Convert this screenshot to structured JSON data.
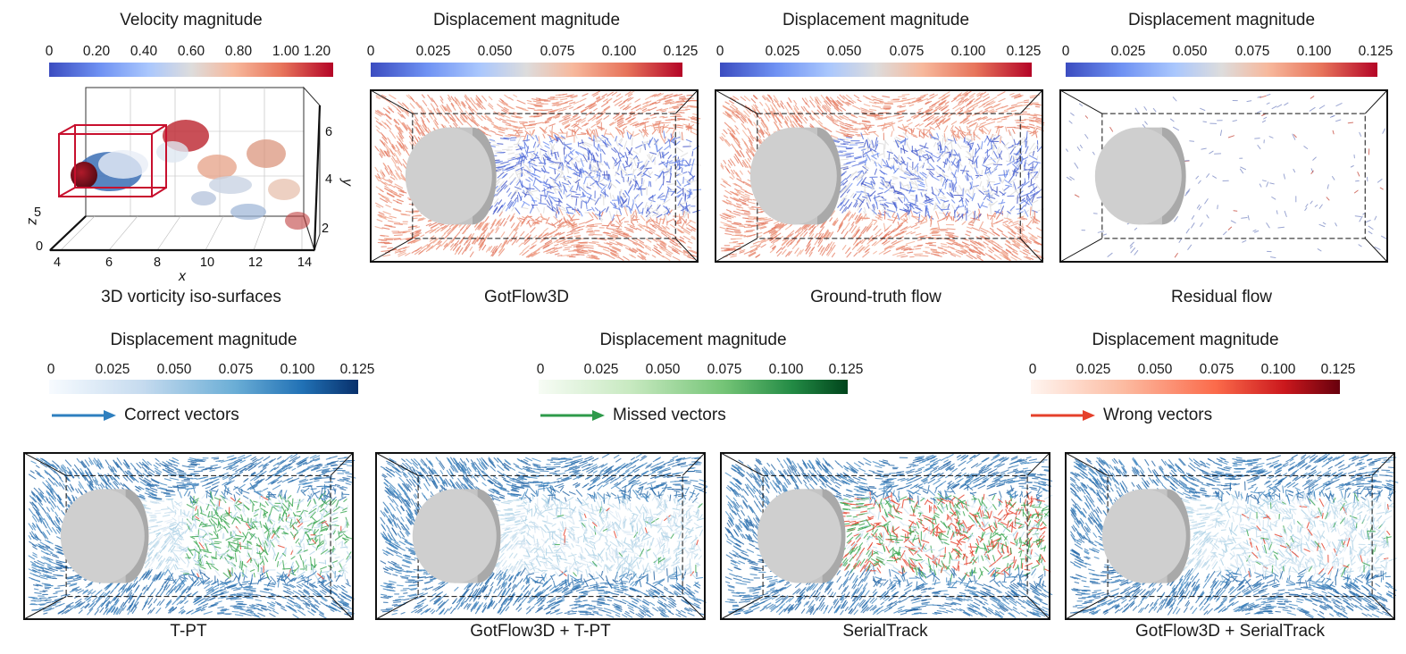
{
  "top_row": {
    "colorbars": [
      {
        "title": "Velocity magnitude",
        "ticks": [
          "0",
          "0.20",
          "0.40",
          "0.60",
          "0.80",
          "1.00",
          "1.20"
        ]
      },
      {
        "title": "Displacement magnitude",
        "ticks": [
          "0",
          "0.025",
          "0.050",
          "0.075",
          "0.100",
          "0.125"
        ]
      },
      {
        "title": "Displacement magnitude",
        "ticks": [
          "0",
          "0.025",
          "0.050",
          "0.075",
          "0.100",
          "0.125"
        ]
      },
      {
        "title": "Displacement magnitude",
        "ticks": [
          "0",
          "0.025",
          "0.050",
          "0.075",
          "0.100",
          "0.125"
        ]
      }
    ],
    "captions": [
      "3D vorticity iso-surfaces",
      "GotFlow3D",
      "Ground-truth flow",
      "Residual flow"
    ],
    "axes3d": {
      "x_name": "x",
      "x_ticks": [
        "4",
        "6",
        "8",
        "10",
        "12",
        "14"
      ],
      "y_name": "y",
      "y_ticks": [
        "6",
        "4",
        "2"
      ],
      "z_name": "z",
      "z_ticks": [
        "5",
        "0"
      ]
    }
  },
  "middle_row": {
    "colorbars": [
      {
        "title": "Displacement magnitude",
        "ticks": [
          "0",
          "0.025",
          "0.050",
          "0.075",
          "0.100",
          "0.125"
        ],
        "legend": "Correct vectors",
        "color": "#2e7fbf"
      },
      {
        "title": "Displacement magnitude",
        "ticks": [
          "0",
          "0.025",
          "0.050",
          "0.075",
          "0.100",
          "0.125"
        ],
        "legend": "Missed vectors",
        "color": "#2e9a4a"
      },
      {
        "title": "Displacement magnitude",
        "ticks": [
          "0",
          "0.025",
          "0.050",
          "0.075",
          "0.100",
          "0.125"
        ],
        "legend": "Wrong vectors",
        "color": "#e5402b"
      }
    ]
  },
  "bottom_row": {
    "captions": [
      "T-PT",
      "GotFlow3D + T-PT",
      "SerialTrack",
      "GotFlow3D + SerialTrack"
    ]
  },
  "colors": {
    "cool_low": "#3b4cc0",
    "cool_mid": "#dddcdc",
    "cool_high": "#b40426",
    "cylinder": "#cfcfcf",
    "box_red": "#c8102e"
  }
}
